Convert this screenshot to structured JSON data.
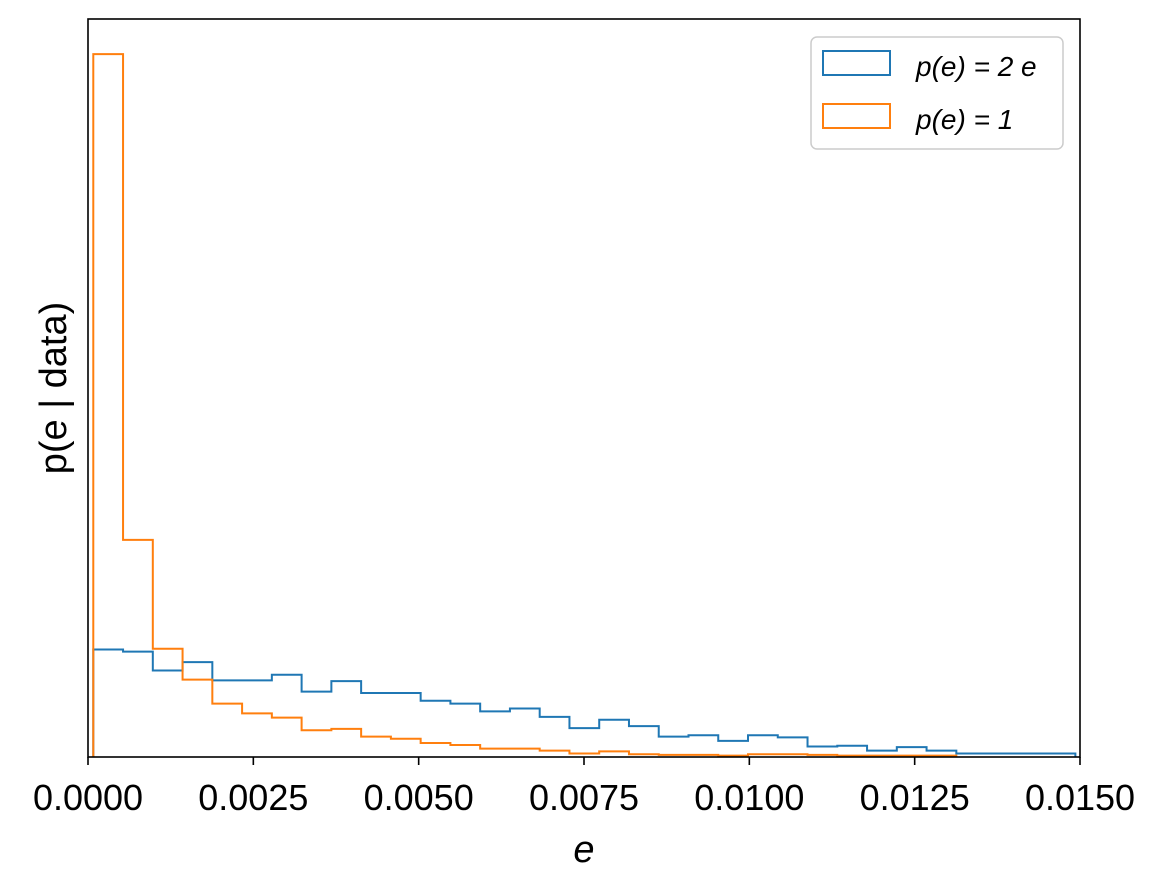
{
  "chart_data": {
    "type": "histogram",
    "title": "",
    "xlabel": "e",
    "ylabel": "p(e | data)",
    "xlim": [
      0.0,
      0.015
    ],
    "y_ticks_shown": false,
    "grid": false,
    "legend_position": "top-right",
    "x_ticks": [
      "0.0000",
      "0.0025",
      "0.0050",
      "0.0075",
      "0.0100",
      "0.0125",
      "0.0150"
    ],
    "series": [
      {
        "name": "p(e) = 2 e",
        "color": "#1f77b4",
        "bin_edges": [
          8e-05,
          0.00053,
          0.00098,
          0.00143,
          0.00188,
          0.00233,
          0.00278,
          0.00323,
          0.00368,
          0.00413,
          0.00458,
          0.00503,
          0.00548,
          0.00593,
          0.00638,
          0.00683,
          0.00728,
          0.00773,
          0.00818,
          0.00863,
          0.00908,
          0.00953,
          0.00998,
          0.01043,
          0.01088,
          0.01133,
          0.01178,
          0.01223,
          0.01268,
          0.01313,
          0.01358,
          0.01403,
          0.01448,
          0.01493
        ],
        "heights": [
          15.3,
          15.0,
          12.3,
          13.5,
          10.9,
          10.9,
          11.7,
          9.3,
          10.8,
          9.1,
          9.1,
          8.0,
          7.6,
          6.5,
          6.9,
          5.7,
          4.1,
          5.3,
          4.4,
          2.9,
          3.1,
          2.3,
          3.1,
          2.8,
          1.5,
          1.6,
          0.9,
          1.4,
          0.9,
          0.5,
          0.5,
          0.5,
          0.5
        ]
      },
      {
        "name": "p(e) = 1",
        "color": "#ff7f0e",
        "bin_edges": [
          8e-05,
          0.00053,
          0.00098,
          0.00143,
          0.00188,
          0.00233,
          0.00278,
          0.00323,
          0.00368,
          0.00413,
          0.00458,
          0.00503,
          0.00548,
          0.00593,
          0.00638,
          0.00683,
          0.00728,
          0.00773,
          0.00818,
          0.00863,
          0.00908,
          0.00953,
          0.00998,
          0.01043,
          0.01088,
          0.01133,
          0.01178,
          0.01223,
          0.01268,
          0.01313
        ],
        "heights": [
          100.0,
          30.9,
          15.4,
          11.0,
          7.6,
          6.2,
          5.6,
          3.8,
          4.0,
          2.9,
          2.6,
          2.0,
          1.7,
          1.2,
          1.2,
          0.9,
          0.5,
          0.8,
          0.4,
          0.3,
          0.3,
          0.2,
          0.4,
          0.4,
          0.3,
          0.2,
          0.2,
          0.2,
          0.2
        ]
      }
    ],
    "ylim": [
      0,
      105
    ]
  }
}
